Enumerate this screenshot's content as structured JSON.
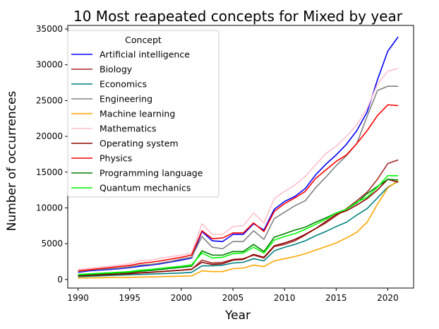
{
  "chart_data": {
    "type": "line",
    "title": "10 Most reapeated concepts for Mixed by year",
    "xlabel": "Year",
    "ylabel": "Number of occurrences",
    "xlim": [
      1989,
      2022.5
    ],
    "ylim": [
      -1200,
      35500
    ],
    "xticks": [
      1990,
      1995,
      2000,
      2005,
      2010,
      2015,
      2020
    ],
    "yticks": [
      0,
      5000,
      10000,
      15000,
      20000,
      25000,
      30000,
      35000
    ],
    "grid": false,
    "legend": {
      "title": "Concept",
      "placement": "top-left"
    },
    "x": [
      1990,
      1991,
      1992,
      1993,
      1994,
      1995,
      1996,
      1997,
      1998,
      1999,
      2000,
      2001,
      2002,
      2003,
      2004,
      2005,
      2006,
      2007,
      2008,
      2009,
      2010,
      2011,
      2012,
      2013,
      2014,
      2015,
      2016,
      2017,
      2018,
      2019,
      2020,
      2021
    ],
    "series": [
      {
        "name": "Artificial intelligence",
        "color": "#0000ff",
        "values": [
          1000,
          1200,
          1300,
          1400,
          1500,
          1650,
          1850,
          2000,
          2200,
          2450,
          2700,
          3000,
          6700,
          5400,
          5300,
          6300,
          6300,
          7800,
          6900,
          9800,
          10900,
          11600,
          12700,
          14600,
          16100,
          17400,
          18900,
          20800,
          23400,
          27900,
          31900,
          33900
        ]
      },
      {
        "name": "Biology",
        "color": "#a52a2a",
        "values": [
          500,
          600,
          650,
          700,
          750,
          850,
          950,
          1000,
          1100,
          1200,
          1300,
          1400,
          2700,
          2300,
          2400,
          2800,
          2900,
          3400,
          3000,
          4600,
          4900,
          5400,
          6200,
          7100,
          7900,
          8900,
          9900,
          11000,
          12200,
          14000,
          16200,
          16700
        ]
      },
      {
        "name": "Economics",
        "color": "#008080",
        "values": [
          400,
          450,
          500,
          550,
          600,
          650,
          700,
          750,
          800,
          850,
          900,
          1000,
          1900,
          1900,
          2000,
          2300,
          2400,
          2900,
          2600,
          4000,
          4500,
          4900,
          5400,
          6100,
          6700,
          7400,
          8000,
          9000,
          9900,
          11400,
          12900,
          13700
        ]
      },
      {
        "name": "Engineering",
        "color": "#808080",
        "values": [
          1100,
          1300,
          1400,
          1500,
          1600,
          1750,
          2000,
          2100,
          2300,
          2550,
          2850,
          3100,
          6000,
          4500,
          4300,
          5300,
          5300,
          6800,
          5600,
          8500,
          9400,
          10300,
          11000,
          12800,
          14300,
          15900,
          17300,
          19000,
          22800,
          26400,
          27000,
          27000
        ]
      },
      {
        "name": "Machine learning",
        "color": "#ffa500",
        "values": [
          200,
          220,
          240,
          260,
          280,
          300,
          330,
          360,
          390,
          420,
          460,
          500,
          1200,
          1100,
          1100,
          1500,
          1600,
          2000,
          1800,
          2600,
          2900,
          3200,
          3600,
          4100,
          4600,
          5100,
          5800,
          6600,
          8000,
          10500,
          12800,
          13800
        ]
      },
      {
        "name": "Mathematics",
        "color": "#ffc0cb",
        "values": [
          1400,
          1550,
          1700,
          1850,
          2000,
          2200,
          2650,
          2700,
          2950,
          3200,
          3400,
          3650,
          7800,
          6300,
          6300,
          7400,
          7500,
          9300,
          7900,
          11300,
          12300,
          13200,
          14400,
          16000,
          17600,
          18600,
          20000,
          21600,
          23900,
          27300,
          29100,
          29500
        ]
      },
      {
        "name": "Operating system",
        "color": "#8b0000",
        "values": [
          500,
          560,
          620,
          680,
          740,
          800,
          900,
          1000,
          1100,
          1200,
          1300,
          1450,
          2400,
          2100,
          2200,
          2700,
          2800,
          3500,
          3100,
          4700,
          5100,
          5600,
          6300,
          7100,
          8100,
          9100,
          9600,
          10400,
          11300,
          12500,
          14000,
          13600
        ]
      },
      {
        "name": "Physics",
        "color": "#ff0000",
        "values": [
          1200,
          1350,
          1500,
          1650,
          1800,
          1950,
          2250,
          2400,
          2600,
          2850,
          3100,
          3400,
          6800,
          5700,
          5800,
          6500,
          6500,
          7900,
          6700,
          9500,
          10600,
          11400,
          12300,
          14100,
          15300,
          16500,
          17400,
          19000,
          20800,
          22900,
          24400,
          24300
        ]
      },
      {
        "name": "Programming language",
        "color": "#008000",
        "values": [
          600,
          680,
          760,
          840,
          920,
          1000,
          1150,
          1250,
          1400,
          1550,
          1700,
          1850,
          4000,
          3400,
          3400,
          3900,
          3900,
          4900,
          3900,
          5900,
          6400,
          6900,
          7300,
          8000,
          8600,
          9300,
          9800,
          10700,
          12000,
          13000,
          14000,
          13900
        ]
      },
      {
        "name": "Quantum mechanics",
        "color": "#00ff00",
        "values": [
          700,
          780,
          860,
          940,
          1020,
          1100,
          1300,
          1400,
          1550,
          1700,
          1850,
          2050,
          3700,
          3000,
          3100,
          3600,
          3700,
          4500,
          3700,
          5500,
          6000,
          6400,
          7000,
          7700,
          8400,
          9300,
          9800,
          10800,
          11500,
          12900,
          14500,
          14500
        ]
      }
    ]
  }
}
